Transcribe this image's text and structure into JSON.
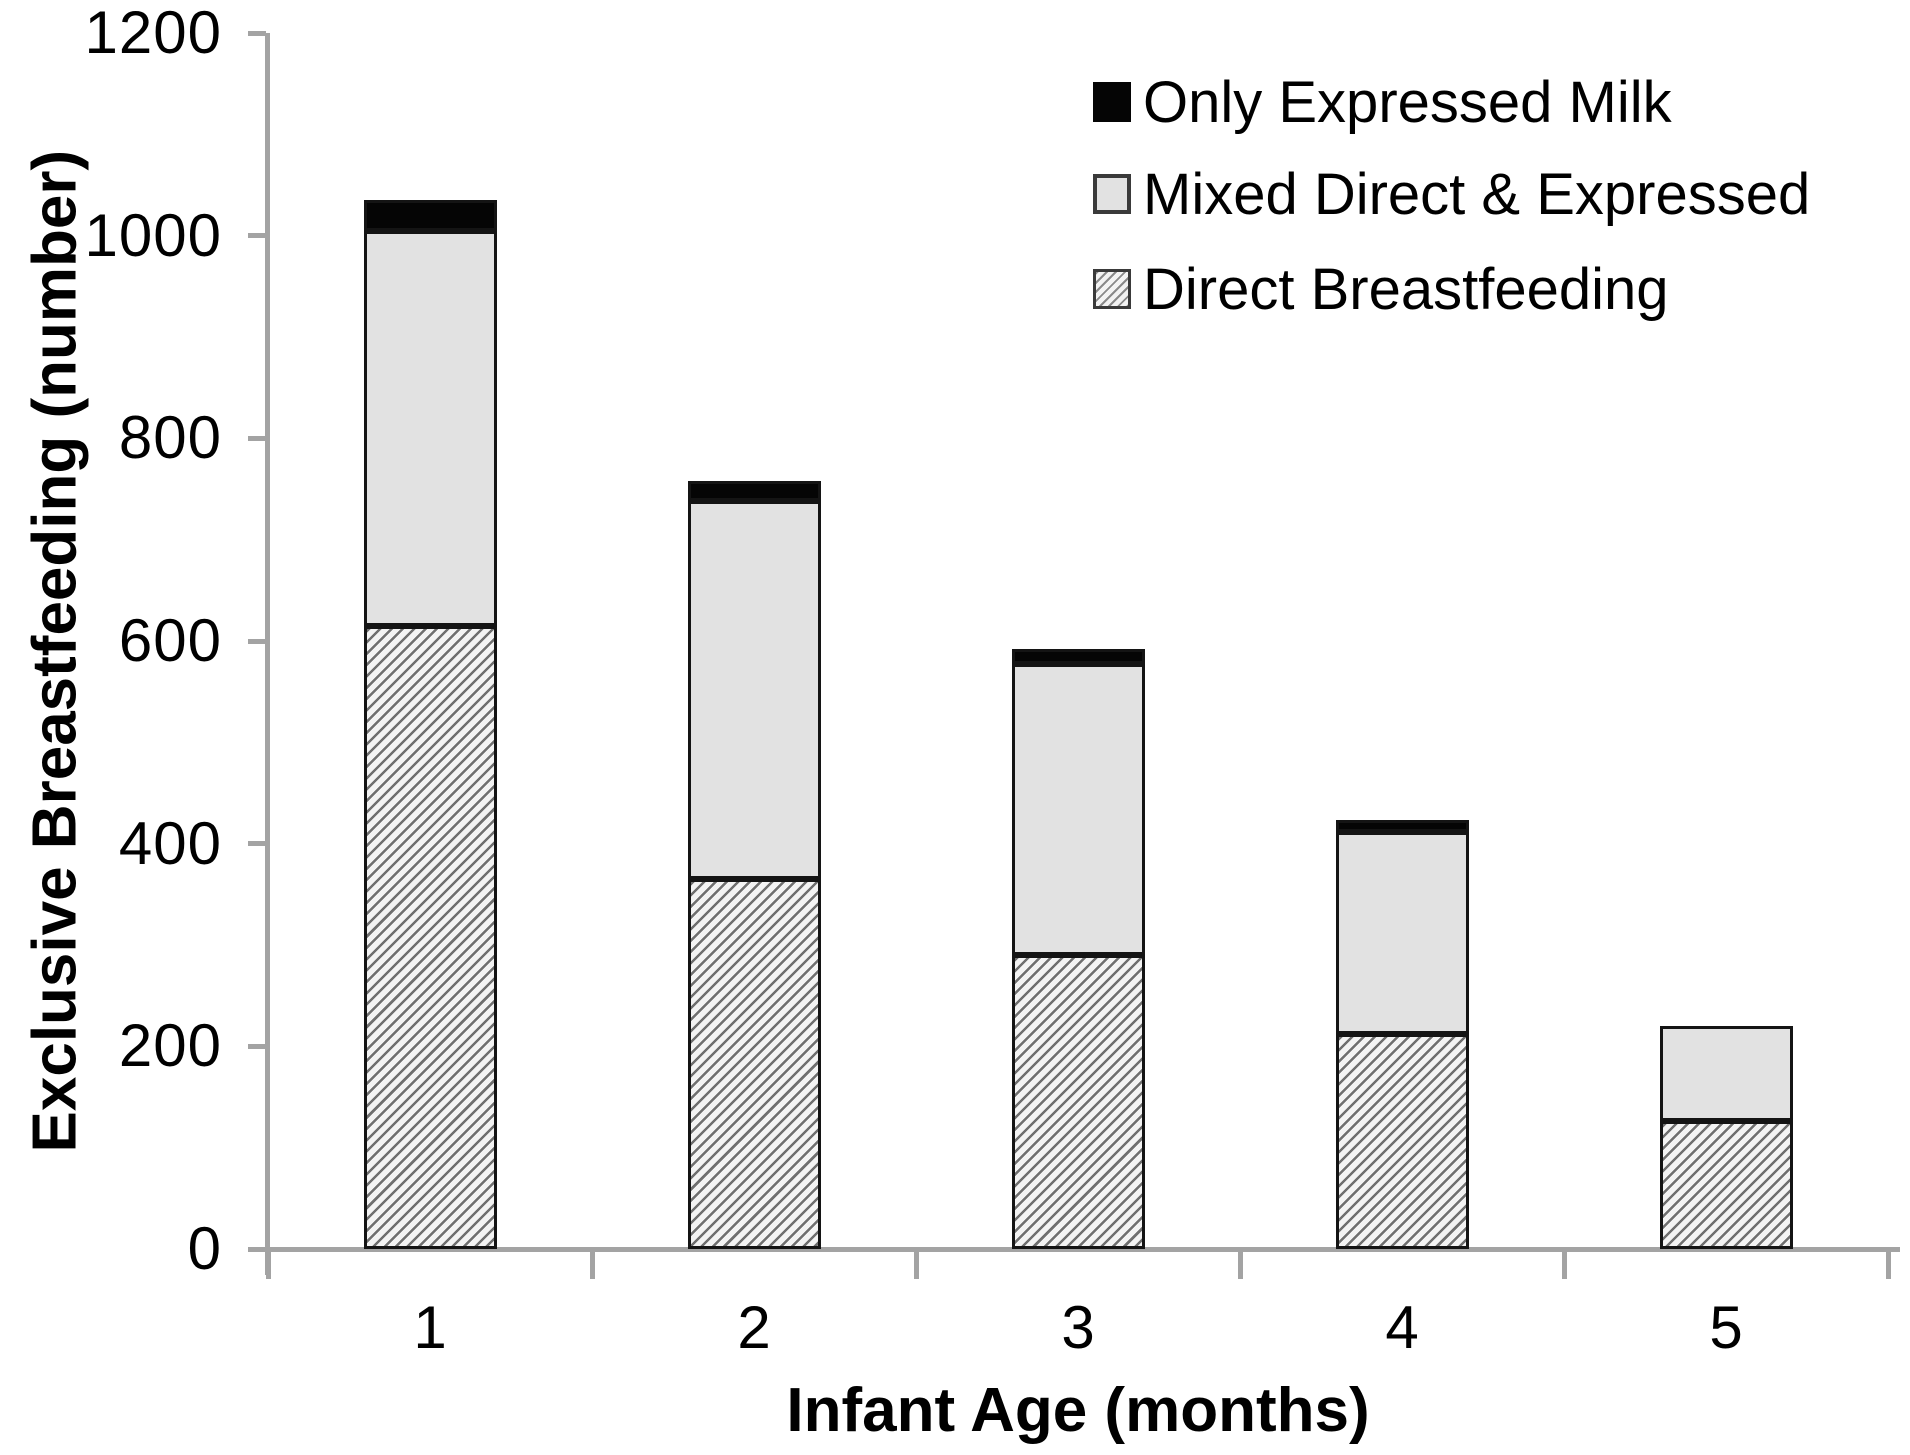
{
  "chart_data": {
    "type": "bar",
    "stacked": true,
    "title": "",
    "xlabel": "Infant Age (months)",
    "ylabel": "Exclusive Breastfeeding (number)",
    "categories": [
      "1",
      "2",
      "3",
      "4",
      "5"
    ],
    "series": [
      {
        "name": "Direct Breastfeeding",
        "fill": "hatch",
        "values": [
          615,
          365,
          290,
          212,
          126
        ]
      },
      {
        "name": "Mixed Direct & Expressed",
        "fill": "#e2e2e2",
        "values": [
          390,
          373,
          287,
          200,
          94
        ]
      },
      {
        "name": "Only Expressed Milk",
        "fill": "#050505",
        "values": [
          30,
          20,
          15,
          11,
          0
        ]
      }
    ],
    "ylim": [
      0,
      1200
    ],
    "yticks": [
      0,
      200,
      400,
      600,
      800,
      1000,
      1200
    ],
    "grid": false,
    "legend_position": "top-right",
    "legend": [
      {
        "label": "Only Expressed Milk",
        "swatch": "black"
      },
      {
        "label": "Mixed Direct & Expressed",
        "swatch": "gray"
      },
      {
        "label": "Direct Breastfeeding",
        "swatch": "hatch"
      }
    ],
    "colors": {
      "axis": "#a3a3a3",
      "text": "#000000",
      "bar_outline": "#141414",
      "black_series": "#050505",
      "gray_series": "#e2e2e2",
      "hatch_lines": "#6f6f6f",
      "hatch_bg": "#f3f3f3"
    }
  }
}
